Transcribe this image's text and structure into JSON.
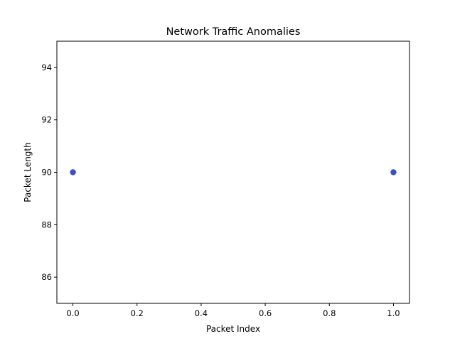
{
  "chart_data": {
    "type": "scatter",
    "title": "Network Traffic Anomalies",
    "xlabel": "Packet Index",
    "ylabel": "Packet Length",
    "xlim": [
      -0.05,
      1.05
    ],
    "ylim": [
      85,
      95
    ],
    "xticks": [
      0.0,
      0.2,
      0.4,
      0.6,
      0.8,
      1.0
    ],
    "xtick_labels": [
      "0.0",
      "0.2",
      "0.4",
      "0.6",
      "0.8",
      "1.0"
    ],
    "yticks": [
      86,
      88,
      90,
      92,
      94
    ],
    "ytick_labels": [
      "86",
      "88",
      "90",
      "92",
      "94"
    ],
    "grid": false,
    "legend": "none",
    "series": [
      {
        "color": "#3a4fc4",
        "points": [
          {
            "x": 0,
            "y": 90
          },
          {
            "x": 1,
            "y": 90
          }
        ]
      }
    ]
  }
}
